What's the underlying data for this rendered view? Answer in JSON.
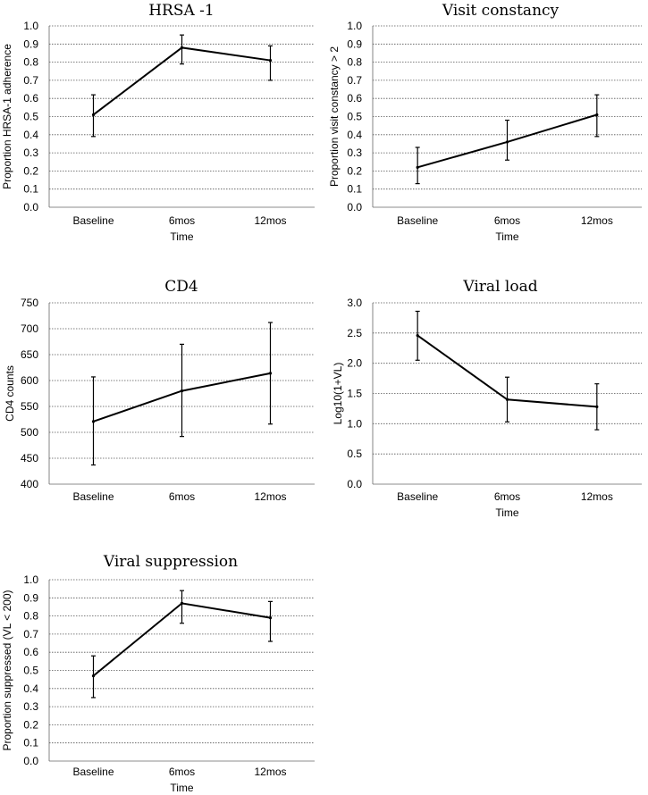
{
  "chart_data": [
    {
      "type": "line",
      "title": "HRSA -1",
      "ylabel": "Proportion HRSA-1 adherence",
      "xlabel": "Time",
      "categories": [
        "Baseline",
        "6mos",
        "12mos"
      ],
      "values": [
        0.51,
        0.88,
        0.81
      ],
      "err_low": [
        0.39,
        0.79,
        0.7
      ],
      "err_high": [
        0.62,
        0.95,
        0.89
      ],
      "ylim": [
        0,
        1.0
      ],
      "yticks": [
        "0.0",
        "0.1",
        "0.2",
        "0.3",
        "0.4",
        "0.5",
        "0.6",
        "0.7",
        "0.8",
        "0.9",
        "1.0"
      ]
    },
    {
      "type": "line",
      "title": "Visit constancy",
      "ylabel": "Proportion visit constancy > 2",
      "xlabel": "Time",
      "categories": [
        "Baseline",
        "6mos",
        "12mos"
      ],
      "values": [
        0.22,
        0.36,
        0.51
      ],
      "err_low": [
        0.13,
        0.26,
        0.39
      ],
      "err_high": [
        0.33,
        0.48,
        0.62
      ],
      "ylim": [
        0,
        1.0
      ],
      "yticks": [
        "0.0",
        "0.1",
        "0.2",
        "0.3",
        "0.4",
        "0.5",
        "0.6",
        "0.7",
        "0.8",
        "0.9",
        "1.0"
      ]
    },
    {
      "type": "line",
      "title": "CD4",
      "ylabel": "CD4 counts",
      "xlabel": "",
      "categories": [
        "Baseline",
        "6mos",
        "12mos"
      ],
      "values": [
        521,
        580,
        614
      ],
      "err_low": [
        437,
        492,
        516
      ],
      "err_high": [
        607,
        670,
        712
      ],
      "ylim": [
        400,
        750
      ],
      "yticks": [
        "400",
        "450",
        "500",
        "550",
        "600",
        "650",
        "700",
        "750"
      ]
    },
    {
      "type": "line",
      "title": "Viral load",
      "ylabel": "Log10(1+VL)",
      "xlabel": "Time",
      "categories": [
        "Baseline",
        "6mos",
        "12mos"
      ],
      "values": [
        2.46,
        1.4,
        1.28
      ],
      "err_low": [
        2.05,
        1.03,
        0.9
      ],
      "err_high": [
        2.86,
        1.77,
        1.66
      ],
      "ylim": [
        0,
        3.0
      ],
      "yticks": [
        "0.0",
        "0.5",
        "1.0",
        "1.5",
        "2.0",
        "2.5",
        "3.0"
      ]
    },
    {
      "type": "line",
      "title": "Viral suppression",
      "ylabel": "Proportion suppressed (VL < 200)",
      "xlabel": "Time",
      "categories": [
        "Baseline",
        "6mos",
        "12mos"
      ],
      "values": [
        0.47,
        0.87,
        0.79
      ],
      "err_low": [
        0.35,
        0.76,
        0.66
      ],
      "err_high": [
        0.58,
        0.94,
        0.88
      ],
      "ylim": [
        0,
        1.0
      ],
      "yticks": [
        "0.0",
        "0.1",
        "0.2",
        "0.3",
        "0.4",
        "0.5",
        "0.6",
        "0.7",
        "0.8",
        "0.9",
        "1.0"
      ]
    }
  ]
}
